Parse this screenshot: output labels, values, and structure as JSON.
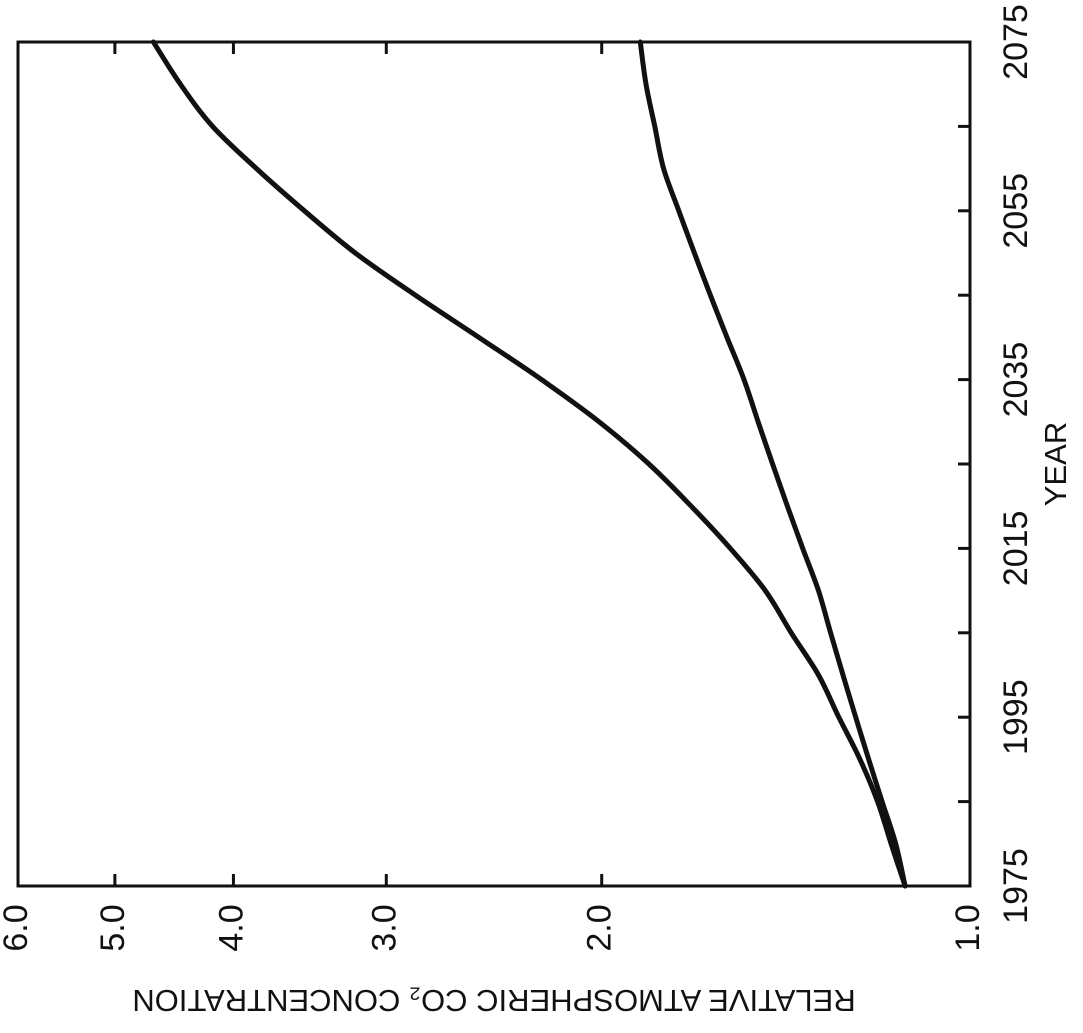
{
  "chart_data": {
    "type": "line",
    "title": "",
    "xlabel": "YEAR",
    "ylabel": "RELATIVE ATMOSPHERIC CO₂ CONCENTRATION",
    "y_scale": "log",
    "xlim": [
      1975,
      2075
    ],
    "ylim": [
      1.0,
      6.0
    ],
    "x_ticks": [
      1975,
      1985,
      1995,
      2005,
      2015,
      2025,
      2035,
      2045,
      2055,
      2065,
      2075
    ],
    "x_tick_labels": [
      "1975",
      "",
      "1995",
      "",
      "2015",
      "",
      "2035",
      "",
      "2055",
      "",
      "2075"
    ],
    "y_ticks": [
      1.0,
      2.0,
      3.0,
      4.0,
      5.0,
      6.0
    ],
    "y_tick_labels": [
      "1.0",
      "2.0",
      "3.0",
      "4.0",
      "5.0",
      "6.0"
    ],
    "grid": false,
    "legend": false,
    "series": [
      {
        "x": [
          1975,
          1980,
          1985,
          1990,
          1995,
          2000,
          2005,
          2010,
          2015,
          2020,
          2025,
          2030,
          2035,
          2040,
          2045,
          2050,
          2055,
          2060,
          2065,
          2070,
          2075
        ],
        "values": [
          1.13,
          1.16,
          1.19,
          1.23,
          1.28,
          1.33,
          1.4,
          1.47,
          1.57,
          1.69,
          1.83,
          2.01,
          2.24,
          2.52,
          2.84,
          3.18,
          3.5,
          3.83,
          4.16,
          4.42,
          4.65
        ]
      },
      {
        "x": [
          1975,
          1980,
          1985,
          1990,
          1995,
          2000,
          2005,
          2010,
          2015,
          2020,
          2025,
          2030,
          2035,
          2040,
          2045,
          2050,
          2055,
          2060,
          2065,
          2070,
          2075
        ],
        "values": [
          1.13,
          1.15,
          1.18,
          1.21,
          1.24,
          1.27,
          1.3,
          1.33,
          1.37,
          1.41,
          1.45,
          1.49,
          1.53,
          1.58,
          1.63,
          1.68,
          1.73,
          1.78,
          1.81,
          1.84,
          1.86
        ]
      }
    ]
  }
}
